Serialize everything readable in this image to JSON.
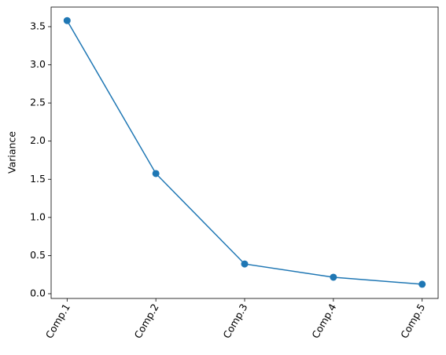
{
  "chart_data": {
    "type": "line",
    "ylabel": "Variance",
    "categories": [
      "Comp.1",
      "Comp.2",
      "Comp.3",
      "Comp.4",
      "Comp.5"
    ],
    "series": [
      {
        "color": "#1f77b4",
        "values": [
          3.58,
          1.575,
          0.39,
          0.216,
          0.124
        ]
      }
    ],
    "ylim": [
      -0.062,
      3.757
    ],
    "yticks": [
      {
        "value": 0,
        "label": "0.0"
      },
      0.5,
      {
        "value": 1,
        "label": "1.0"
      },
      1.5,
      {
        "value": 2,
        "label": "2.0"
      },
      2.5,
      {
        "value": 3,
        "label": "3.0"
      },
      3.5
    ],
    "grid": false,
    "markers": true
  }
}
